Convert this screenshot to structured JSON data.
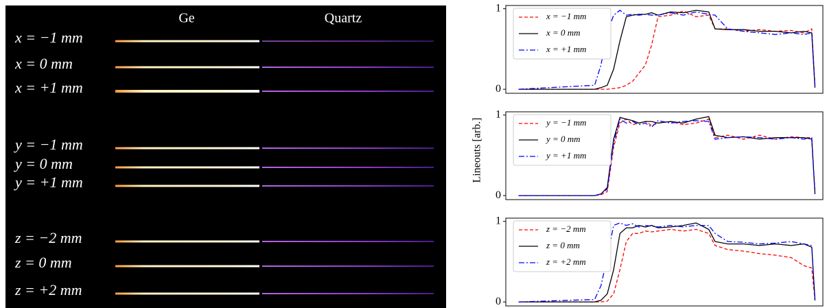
{
  "image": {
    "columns": [
      "Ge",
      "Quartz"
    ],
    "rows": [
      "x = −1 mm",
      "x = 0 mm",
      "x = +1 mm",
      "y = −1 mm",
      "y = 0 mm",
      "y = +1 mm",
      "z = −2 mm",
      "z = 0 mm",
      "z = +2 mm"
    ]
  },
  "chart_data": [
    {
      "type": "line",
      "x": [
        4,
        28,
        30,
        32,
        34,
        36,
        38,
        40,
        42,
        44,
        46,
        48,
        52,
        56,
        60,
        64,
        66,
        70,
        75,
        80,
        85,
        90,
        94,
        96.5,
        97.5
      ],
      "xlim": [
        0,
        100
      ],
      "ylim": [
        -0.05,
        1.04
      ],
      "yticks": [
        0,
        1
      ],
      "legend": "upper left",
      "series": [
        {
          "name": "x = −1 mm",
          "color": "#ff0000",
          "dash": "dashed",
          "values": [
            0,
            0,
            0,
            0,
            0.01,
            0.02,
            0.05,
            0.1,
            0.2,
            0.3,
            0.55,
            0.9,
            0.92,
            0.97,
            0.9,
            0.92,
            0.75,
            0.75,
            0.72,
            0.74,
            0.72,
            0.73,
            0.7,
            0.75,
            0.05
          ]
        },
        {
          "name": "x = 0 mm",
          "color": "#000000",
          "dash": "solid",
          "values": [
            0,
            0,
            0.02,
            0.05,
            0.25,
            0.6,
            0.9,
            0.92,
            0.93,
            0.93,
            0.95,
            0.92,
            0.96,
            0.95,
            0.98,
            0.96,
            0.75,
            0.74,
            0.74,
            0.72,
            0.72,
            0.7,
            0.72,
            0.7,
            0.02
          ]
        },
        {
          "name": "x = +1 mm",
          "color": "#0000ff",
          "dash": "dashdot",
          "values": [
            0,
            0.05,
            0.3,
            0.7,
            0.92,
            0.98,
            0.92,
            0.93,
            0.92,
            0.93,
            0.92,
            0.92,
            0.95,
            0.92,
            0.96,
            0.93,
            0.92,
            0.75,
            0.72,
            0.7,
            0.68,
            0.7,
            0.68,
            0.7,
            0.02
          ]
        }
      ]
    },
    {
      "type": "line",
      "ylabel": "Lineouts [arb.]",
      "x": [
        4,
        28,
        30,
        32,
        34,
        36,
        38,
        40,
        42,
        44,
        46,
        48,
        52,
        56,
        60,
        64,
        66,
        70,
        75,
        80,
        85,
        90,
        94,
        96.5,
        97.5
      ],
      "xlim": [
        0,
        100
      ],
      "ylim": [
        -0.05,
        1.04
      ],
      "yticks": [
        0,
        1
      ],
      "legend": "upper left",
      "series": [
        {
          "name": "y = −1 mm",
          "color": "#ff0000",
          "dash": "dashed",
          "values": [
            0,
            0,
            0.01,
            0.05,
            0.6,
            0.9,
            0.95,
            0.88,
            0.9,
            0.92,
            0.87,
            0.9,
            0.92,
            0.88,
            0.9,
            0.95,
            0.72,
            0.75,
            0.7,
            0.75,
            0.7,
            0.73,
            0.72,
            0.72,
            0.03
          ]
        },
        {
          "name": "y = 0 mm",
          "color": "#000000",
          "dash": "solid",
          "values": [
            0,
            0,
            0.02,
            0.1,
            0.7,
            0.97,
            0.95,
            0.93,
            0.9,
            0.92,
            0.92,
            0.9,
            0.92,
            0.9,
            0.95,
            0.98,
            0.75,
            0.72,
            0.73,
            0.7,
            0.72,
            0.72,
            0.72,
            0.7,
            0.02
          ]
        },
        {
          "name": "y = +1 mm",
          "color": "#0000ff",
          "dash": "dashdot",
          "values": [
            0,
            0,
            0.02,
            0.08,
            0.65,
            0.95,
            0.9,
            0.92,
            0.88,
            0.9,
            0.85,
            0.93,
            0.9,
            0.92,
            0.93,
            0.92,
            0.7,
            0.72,
            0.73,
            0.72,
            0.7,
            0.72,
            0.7,
            0.72,
            0.02
          ]
        }
      ]
    },
    {
      "type": "line",
      "x": [
        4,
        28,
        30,
        32,
        34,
        36,
        38,
        40,
        42,
        44,
        46,
        48,
        52,
        56,
        60,
        64,
        66,
        70,
        75,
        80,
        85,
        90,
        94,
        96.5,
        97.5
      ],
      "xlim": [
        0,
        100
      ],
      "ylim": [
        -0.05,
        1.04
      ],
      "yticks": [
        0,
        1
      ],
      "legend": "upper left",
      "series": [
        {
          "name": "z = −2 mm",
          "color": "#ff0000",
          "dash": "dashed",
          "values": [
            0,
            0,
            0,
            0.01,
            0.1,
            0.4,
            0.75,
            0.85,
            0.85,
            0.88,
            0.87,
            0.88,
            0.9,
            0.88,
            0.9,
            0.85,
            0.7,
            0.65,
            0.63,
            0.6,
            0.58,
            0.55,
            0.45,
            0.42,
            0.02
          ]
        },
        {
          "name": "z = 0 mm",
          "color": "#000000",
          "dash": "solid",
          "values": [
            0,
            0,
            0.02,
            0.1,
            0.4,
            0.85,
            0.92,
            0.92,
            0.95,
            0.93,
            0.95,
            0.92,
            0.93,
            0.95,
            0.98,
            0.9,
            0.75,
            0.72,
            0.72,
            0.7,
            0.72,
            0.7,
            0.72,
            0.68,
            0.02
          ]
        },
        {
          "name": "z = +2 mm",
          "color": "#0000ff",
          "dash": "dashdot",
          "values": [
            0,
            0.03,
            0.2,
            0.55,
            0.95,
            0.98,
            0.95,
            0.97,
            0.93,
            0.95,
            0.94,
            0.93,
            0.95,
            0.93,
            0.95,
            0.95,
            0.85,
            0.75,
            0.74,
            0.72,
            0.73,
            0.75,
            0.72,
            0.7,
            0.02
          ]
        }
      ]
    }
  ]
}
